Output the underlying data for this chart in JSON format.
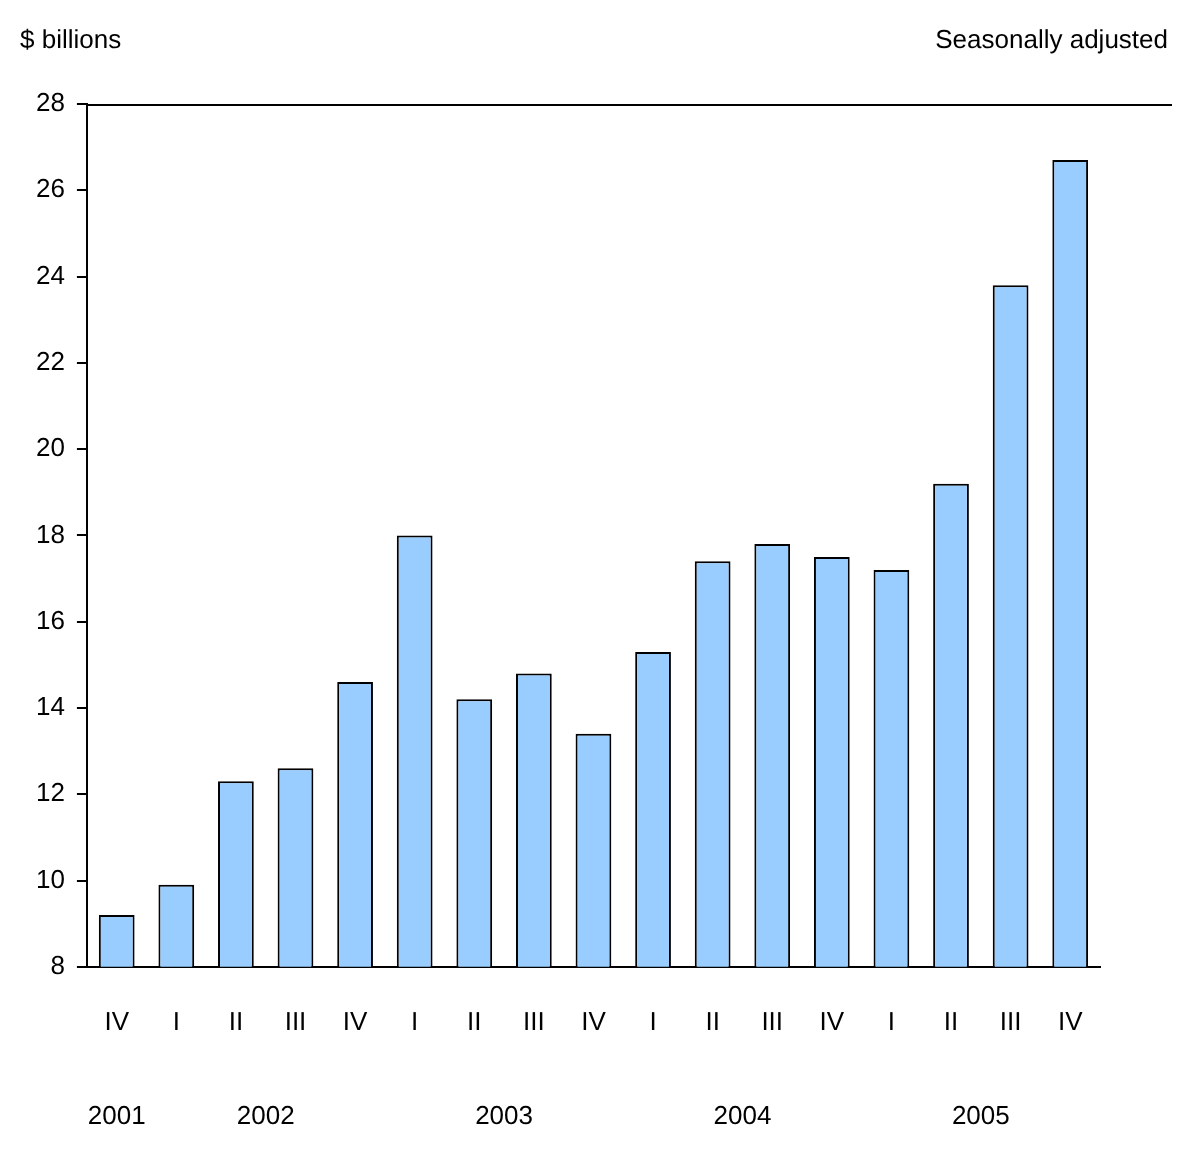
{
  "chart_data": {
    "type": "bar",
    "ylabel": "$ billions",
    "subtitle": "Seasonally adjusted",
    "categories": [
      "IV",
      "I",
      "II",
      "III",
      "IV",
      "I",
      "II",
      "III",
      "IV",
      "I",
      "II",
      "III",
      "IV",
      "I",
      "II",
      "III",
      "IV"
    ],
    "values": [
      9.2,
      9.9,
      12.3,
      12.6,
      14.6,
      18.0,
      14.2,
      14.8,
      13.4,
      15.3,
      17.4,
      17.8,
      17.5,
      17.2,
      19.2,
      23.8,
      26.7
    ],
    "color": "#99ccff",
    "ylim": [
      8,
      28
    ],
    "yticks": [
      8,
      10,
      12,
      14,
      16,
      18,
      20,
      22,
      24,
      26,
      28
    ],
    "grid": false,
    "annotations": [
      "2001",
      "2002",
      "2003",
      "2004",
      "2005"
    ]
  }
}
